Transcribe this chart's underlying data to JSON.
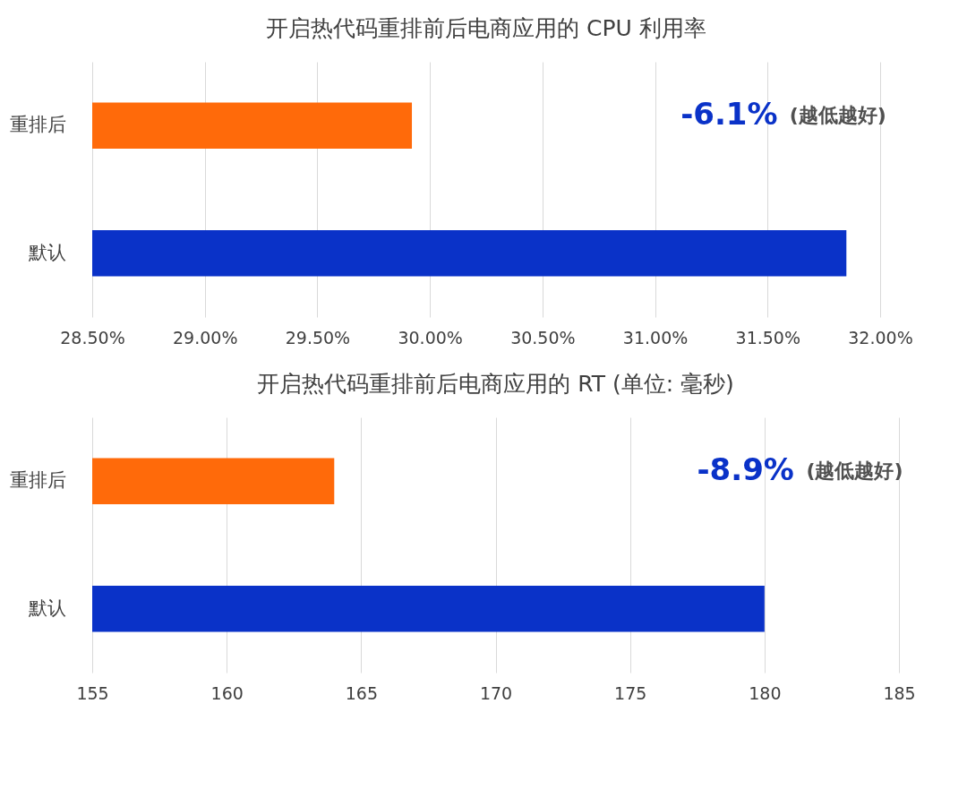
{
  "chart_data": [
    {
      "type": "bar",
      "orientation": "horizontal",
      "title": "开启热代码重排前后电商应用的 CPU 利用率",
      "categories": [
        "重排后",
        "默认"
      ],
      "colors": [
        "#ff6a0a",
        "#0a32c8"
      ],
      "values": [
        29.92,
        31.85
      ],
      "xlim": [
        28.5,
        32.0
      ],
      "xticks": [
        {
          "value": 28.5,
          "label": "28.50%"
        },
        {
          "value": 29.0,
          "label": "29.00%"
        },
        {
          "value": 29.5,
          "label": "29.50%"
        },
        {
          "value": 30.0,
          "label": "30.00%"
        },
        {
          "value": 30.5,
          "label": "30.50%"
        },
        {
          "value": 31.0,
          "label": "31.00%"
        },
        {
          "value": 31.5,
          "label": "31.50%"
        },
        {
          "value": 32.0,
          "label": "32.00%"
        }
      ],
      "grid": "x",
      "annotations": [
        "-6.1%",
        "(越低越好)"
      ]
    },
    {
      "type": "bar",
      "orientation": "horizontal",
      "title": "开启热代码重排前后电商应用的 RT (单位: 毫秒)",
      "categories": [
        "重排后",
        "默认"
      ],
      "colors": [
        "#ff6a0a",
        "#0a32c8"
      ],
      "values": [
        164,
        180
      ],
      "xlim": [
        155,
        185
      ],
      "xticks": [
        155,
        160,
        165,
        170,
        175,
        180,
        185
      ],
      "grid": "x",
      "annotations": [
        "-8.9%",
        "(越低越好)"
      ]
    }
  ]
}
